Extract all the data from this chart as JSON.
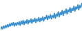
{
  "line_color": "#3a8fce",
  "linewidth": 1.3,
  "background_color": "#ffffff",
  "y_values": [
    10,
    14,
    11,
    15,
    12,
    16,
    13,
    17,
    14,
    18,
    15,
    19,
    16,
    20,
    15,
    19,
    16,
    20,
    17,
    21,
    16,
    22,
    18,
    23,
    17,
    22,
    19,
    24,
    18,
    23,
    20,
    25,
    19,
    24,
    21,
    26,
    20,
    25,
    22,
    27,
    21,
    26,
    23,
    28,
    22,
    27,
    25,
    30,
    24,
    29,
    26,
    31,
    25,
    30,
    27,
    33,
    26,
    32,
    29,
    35,
    28,
    34,
    31,
    37,
    30,
    36,
    33,
    39,
    32,
    38,
    35,
    41,
    34,
    40,
    37,
    43,
    36,
    42,
    39,
    45,
    38,
    44,
    41,
    47
  ]
}
